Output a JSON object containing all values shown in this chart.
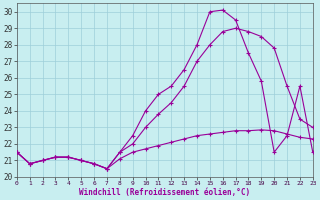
{
  "xlabel": "Windchill (Refroidissement éolien,°C)",
  "bg_color": "#c8eef0",
  "grid_color": "#9ecfda",
  "line_color": "#990099",
  "xlim": [
    0,
    23
  ],
  "ylim": [
    20,
    30.5
  ],
  "xticks": [
    0,
    1,
    2,
    3,
    4,
    5,
    6,
    7,
    8,
    9,
    10,
    11,
    12,
    13,
    14,
    15,
    16,
    17,
    18,
    19,
    20,
    21,
    22,
    23
  ],
  "yticks": [
    20,
    21,
    22,
    23,
    24,
    25,
    26,
    27,
    28,
    29,
    30
  ],
  "line1_x": [
    0,
    1,
    2,
    3,
    4,
    5,
    6,
    7,
    8,
    9,
    10,
    11,
    12,
    13,
    14,
    15,
    16,
    17,
    18,
    19,
    20,
    21,
    22,
    23
  ],
  "line1_y": [
    21.5,
    20.8,
    21.0,
    21.2,
    21.2,
    21.0,
    20.8,
    20.5,
    21.1,
    21.5,
    21.7,
    21.9,
    22.1,
    22.3,
    22.5,
    22.6,
    22.7,
    22.8,
    22.8,
    22.85,
    22.8,
    22.6,
    22.4,
    22.3
  ],
  "line2_x": [
    0,
    1,
    2,
    3,
    4,
    5,
    6,
    7,
    8,
    9,
    10,
    11,
    12,
    13,
    14,
    15,
    16,
    17,
    18,
    19,
    20,
    21,
    22,
    23
  ],
  "line2_y": [
    21.5,
    20.8,
    21.0,
    21.2,
    21.2,
    21.0,
    20.8,
    20.5,
    21.5,
    22.0,
    23.0,
    23.8,
    24.5,
    25.5,
    27.0,
    28.0,
    28.8,
    29.0,
    28.8,
    28.5,
    27.8,
    25.5,
    23.5,
    23.0
  ],
  "line3_x": [
    0,
    1,
    2,
    3,
    4,
    5,
    6,
    7,
    8,
    9,
    10,
    11,
    12,
    13,
    14,
    15,
    16,
    17,
    18,
    19,
    20,
    21,
    22,
    23
  ],
  "line3_y": [
    21.5,
    20.8,
    21.0,
    21.2,
    21.2,
    21.0,
    20.8,
    20.5,
    21.5,
    22.5,
    24.0,
    25.0,
    25.5,
    26.5,
    28.0,
    30.0,
    30.1,
    29.5,
    27.5,
    25.8,
    21.5,
    22.5,
    25.5,
    21.5
  ]
}
